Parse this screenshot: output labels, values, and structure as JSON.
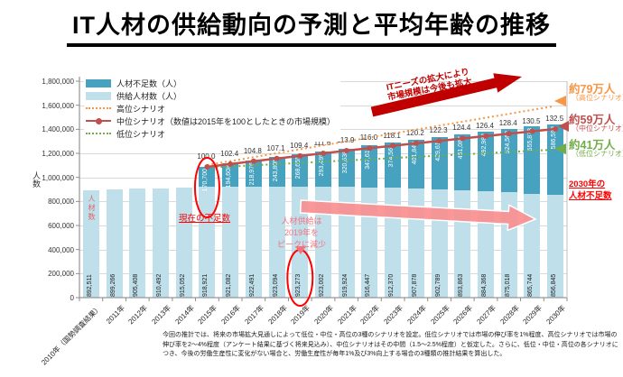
{
  "page": {
    "title": "IT人材の供給動向の予測と平均年齢の推移"
  },
  "chart_data": {
    "type": "bar",
    "subtype": "stacked-bar-with-index-lines",
    "title": "",
    "xlabel": "",
    "ylabel": "人数",
    "ylim": [
      0,
      1800000
    ],
    "ystep": 200000,
    "grid": true,
    "legend_position": "top-left-inside",
    "categories": [
      "2010年（国勢調査結果）",
      "2011年",
      "2012年",
      "2013年",
      "2014年",
      "2015年",
      "2016年",
      "2017年",
      "2018年",
      "2019年",
      "2020年",
      "2021年",
      "2022年",
      "2023年",
      "2024年",
      "2025年",
      "2026年",
      "2027年",
      "2028年",
      "2029年",
      "2030年"
    ],
    "series": [
      {
        "name": "供給人材数（人）",
        "type": "bar",
        "color": "#BFDFEA",
        "values": [
          892511,
          899266,
          905408,
          910492,
          915052,
          918921,
          921082,
          922491,
          923094,
          923273,
          923002,
          919924,
          916447,
          912370,
          907878,
          902789,
          893863,
          884368,
          875018,
          865744,
          856845
        ]
      },
      {
        "name": "人材不足数（人）",
        "type": "bar-stacked",
        "color": "#46A2BF",
        "values": [
          null,
          null,
          null,
          null,
          null,
          170700,
          194608,
          218976,
          243805,
          268655,
          293499,
          320638,
          347611,
          374564,
          401843,
          429611,
          461087,
          492983,
          524562,
          555873,
          586598
        ]
      },
      {
        "name": "中位シナリオ（数値は2015年を100としたときの市場規模）",
        "type": "line",
        "color": "#C0504D",
        "start_index": 5,
        "values": [
          100.0,
          102.4,
          104.8,
          107.1,
          109.4,
          111.6,
          113.9,
          116.0,
          118.1,
          120.2,
          122.3,
          124.4,
          126.4,
          128.4,
          130.5,
          132.5
        ]
      },
      {
        "name": "高位シナリオ",
        "type": "dotted-line",
        "color": "#F79646"
      },
      {
        "name": "低位シナリオ",
        "type": "dotted-line",
        "color": "#70AD47"
      }
    ],
    "legend": [
      {
        "label": "人材不足数（人）"
      },
      {
        "label": "供給人材数（人）"
      },
      {
        "label": "高位シナリオ"
      },
      {
        "label": "中位シナリオ（数値は2015年を100としたときの市場規模）"
      },
      {
        "label": "低位シナリオ"
      }
    ]
  },
  "annotations": {
    "market_line1": "ITニーズの拡大により",
    "market_line2": "市場規模は今後も拡大",
    "high_value": "約79万人",
    "high_label": "（高位シナリオ）",
    "mid_value": "約59万人",
    "mid_label": "（中位シナリオ）",
    "low_value": "約41万人",
    "low_label": "（低位シナリオ）",
    "shortage_2030_line1": "2030年の",
    "shortage_2030_line2": "人材不足数",
    "current_shortage": "現在の不足数",
    "jinzai_label": "人材数",
    "supply_peak_line1": "人材供給は",
    "supply_peak_line2": "2019年を",
    "supply_peak_line3": "ピークに減少"
  },
  "footnote": "今回の推計では、将来の市場拡大見通しによって低位・中位・高位の3種のシナリオを設定。低位シナリオでは市場の伸び率を1%程度、高位シナリオでは市場の伸び率を2～4%程度（アンケート結果に基づく将来見込み）、中位シナリオはその中間（1.5～2.5%程度）と仮定した。さらに、低位・中位・高位の各シナリオにつき、今後の労働生産性に変化がない場合と、労働生産性が毎年1%及び3%向上する場合の3種類の推計結果を算出した。"
}
